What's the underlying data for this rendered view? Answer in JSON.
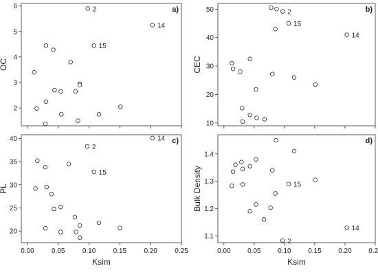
{
  "chart_data": [
    {
      "type": "scatter",
      "panel_label": "a)",
      "xlabel": "",
      "ylabel": "OC",
      "xlim": [
        -0.01,
        0.25
      ],
      "ylim": [
        1.3,
        6.1
      ],
      "xticks": [
        0.0,
        0.05,
        0.1,
        0.15,
        0.2,
        0.25
      ],
      "xtick_labels": [
        "0.00",
        "0.05",
        "0.10",
        "0.15",
        "0.20",
        "0.25"
      ],
      "show_xtick_labels": false,
      "yticks": [
        2,
        3,
        4,
        5,
        6
      ],
      "ytick_labels": [
        "2",
        "3",
        "4",
        "5",
        "6"
      ],
      "points": [
        {
          "x": 0.098,
          "y": 5.9,
          "label": "2"
        },
        {
          "x": 0.203,
          "y": 5.25,
          "label": "14"
        },
        {
          "x": 0.108,
          "y": 4.45,
          "label": "15"
        },
        {
          "x": 0.03,
          "y": 4.45
        },
        {
          "x": 0.042,
          "y": 4.28
        },
        {
          "x": 0.07,
          "y": 3.8
        },
        {
          "x": 0.011,
          "y": 3.4
        },
        {
          "x": 0.085,
          "y": 2.95
        },
        {
          "x": 0.085,
          "y": 2.9
        },
        {
          "x": 0.044,
          "y": 2.7
        },
        {
          "x": 0.054,
          "y": 2.65
        },
        {
          "x": 0.078,
          "y": 2.65
        },
        {
          "x": 0.03,
          "y": 2.25
        },
        {
          "x": 0.151,
          "y": 2.05
        },
        {
          "x": 0.015,
          "y": 1.98
        },
        {
          "x": 0.055,
          "y": 1.75
        },
        {
          "x": 0.116,
          "y": 1.75
        },
        {
          "x": 0.082,
          "y": 1.5
        },
        {
          "x": 0.029,
          "y": 1.38
        }
      ]
    },
    {
      "type": "scatter",
      "panel_label": "b)",
      "xlabel": "",
      "ylabel": "CEC",
      "xlim": [
        -0.01,
        0.25
      ],
      "ylim": [
        9,
        52
      ],
      "xticks": [
        0.0,
        0.05,
        0.1,
        0.15,
        0.2,
        0.25
      ],
      "xtick_labels": [
        "0.00",
        "0.05",
        "0.10",
        "0.15",
        "0.20",
        "0.25"
      ],
      "show_xtick_labels": false,
      "yticks": [
        10,
        20,
        30,
        40,
        50
      ],
      "ytick_labels": [
        "10",
        "20",
        "30",
        "40",
        "50"
      ],
      "points": [
        {
          "x": 0.078,
          "y": 50.5
        },
        {
          "x": 0.087,
          "y": 50.0
        },
        {
          "x": 0.097,
          "y": 49.2,
          "label": "2"
        },
        {
          "x": 0.107,
          "y": 45.0,
          "label": "15"
        },
        {
          "x": 0.085,
          "y": 43.0
        },
        {
          "x": 0.203,
          "y": 41.0,
          "label": "14"
        },
        {
          "x": 0.043,
          "y": 32.5
        },
        {
          "x": 0.013,
          "y": 31.0
        },
        {
          "x": 0.015,
          "y": 29.0
        },
        {
          "x": 0.027,
          "y": 28.0
        },
        {
          "x": 0.08,
          "y": 27.2
        },
        {
          "x": 0.116,
          "y": 26.0
        },
        {
          "x": 0.151,
          "y": 23.5
        },
        {
          "x": 0.053,
          "y": 21.8
        },
        {
          "x": 0.03,
          "y": 15.2
        },
        {
          "x": 0.043,
          "y": 12.8
        },
        {
          "x": 0.054,
          "y": 11.8
        },
        {
          "x": 0.067,
          "y": 11.3
        },
        {
          "x": 0.031,
          "y": 10.5
        }
      ]
    },
    {
      "type": "scatter",
      "panel_label": "c)",
      "xlabel": "Ksim",
      "ylabel": "PL",
      "xlim": [
        -0.01,
        0.25
      ],
      "ylim": [
        17.5,
        40.8
      ],
      "xticks": [
        0.0,
        0.05,
        0.1,
        0.15,
        0.2,
        0.25
      ],
      "xtick_labels": [
        "0.00",
        "0.05",
        "0.10",
        "0.15",
        "0.20",
        "0.25"
      ],
      "show_xtick_labels": true,
      "yticks": [
        20,
        25,
        30,
        35,
        40
      ],
      "ytick_labels": [
        "20",
        "25",
        "30",
        "35",
        "40"
      ],
      "points": [
        {
          "x": 0.203,
          "y": 40.1,
          "label": "14"
        },
        {
          "x": 0.097,
          "y": 38.3,
          "label": "2"
        },
        {
          "x": 0.016,
          "y": 35.2
        },
        {
          "x": 0.067,
          "y": 34.5
        },
        {
          "x": 0.029,
          "y": 33.8
        },
        {
          "x": 0.108,
          "y": 32.8,
          "label": "15"
        },
        {
          "x": 0.013,
          "y": 29.2
        },
        {
          "x": 0.031,
          "y": 29.5
        },
        {
          "x": 0.039,
          "y": 28.0
        },
        {
          "x": 0.043,
          "y": 24.8
        },
        {
          "x": 0.054,
          "y": 25.2
        },
        {
          "x": 0.077,
          "y": 23.0
        },
        {
          "x": 0.116,
          "y": 21.8
        },
        {
          "x": 0.085,
          "y": 21.2
        },
        {
          "x": 0.15,
          "y": 20.7
        },
        {
          "x": 0.029,
          "y": 20.6
        },
        {
          "x": 0.054,
          "y": 19.8
        },
        {
          "x": 0.079,
          "y": 19.8
        },
        {
          "x": 0.085,
          "y": 18.6
        }
      ]
    },
    {
      "type": "scatter",
      "panel_label": "d)",
      "xlabel": "Ksim",
      "ylabel": "Bulk Density",
      "xlim": [
        -0.01,
        0.25
      ],
      "ylim": [
        1.075,
        1.47
      ],
      "xticks": [
        0.0,
        0.05,
        0.1,
        0.15,
        0.2,
        0.25
      ],
      "xtick_labels": [
        "0.00",
        "0.05",
        "0.10",
        "0.15",
        "0.20",
        "0.25"
      ],
      "show_xtick_labels": true,
      "yticks": [
        1.1,
        1.2,
        1.3,
        1.4
      ],
      "ytick_labels": [
        "1.1",
        "1.2",
        "1.3",
        "1.4"
      ],
      "points": [
        {
          "x": 0.086,
          "y": 1.45
        },
        {
          "x": 0.116,
          "y": 1.41
        },
        {
          "x": 0.053,
          "y": 1.38
        },
        {
          "x": 0.029,
          "y": 1.37
        },
        {
          "x": 0.019,
          "y": 1.36
        },
        {
          "x": 0.043,
          "y": 1.355
        },
        {
          "x": 0.031,
          "y": 1.345
        },
        {
          "x": 0.08,
          "y": 1.34
        },
        {
          "x": 0.015,
          "y": 1.335
        },
        {
          "x": 0.151,
          "y": 1.305
        },
        {
          "x": 0.107,
          "y": 1.29,
          "label": "15"
        },
        {
          "x": 0.031,
          "y": 1.288
        },
        {
          "x": 0.013,
          "y": 1.283
        },
        {
          "x": 0.085,
          "y": 1.255
        },
        {
          "x": 0.053,
          "y": 1.215
        },
        {
          "x": 0.077,
          "y": 1.203
        },
        {
          "x": 0.043,
          "y": 1.19
        },
        {
          "x": 0.066,
          "y": 1.16
        },
        {
          "x": 0.203,
          "y": 1.13,
          "label": "14"
        },
        {
          "x": 0.097,
          "y": 1.083,
          "label": "2"
        }
      ]
    }
  ]
}
